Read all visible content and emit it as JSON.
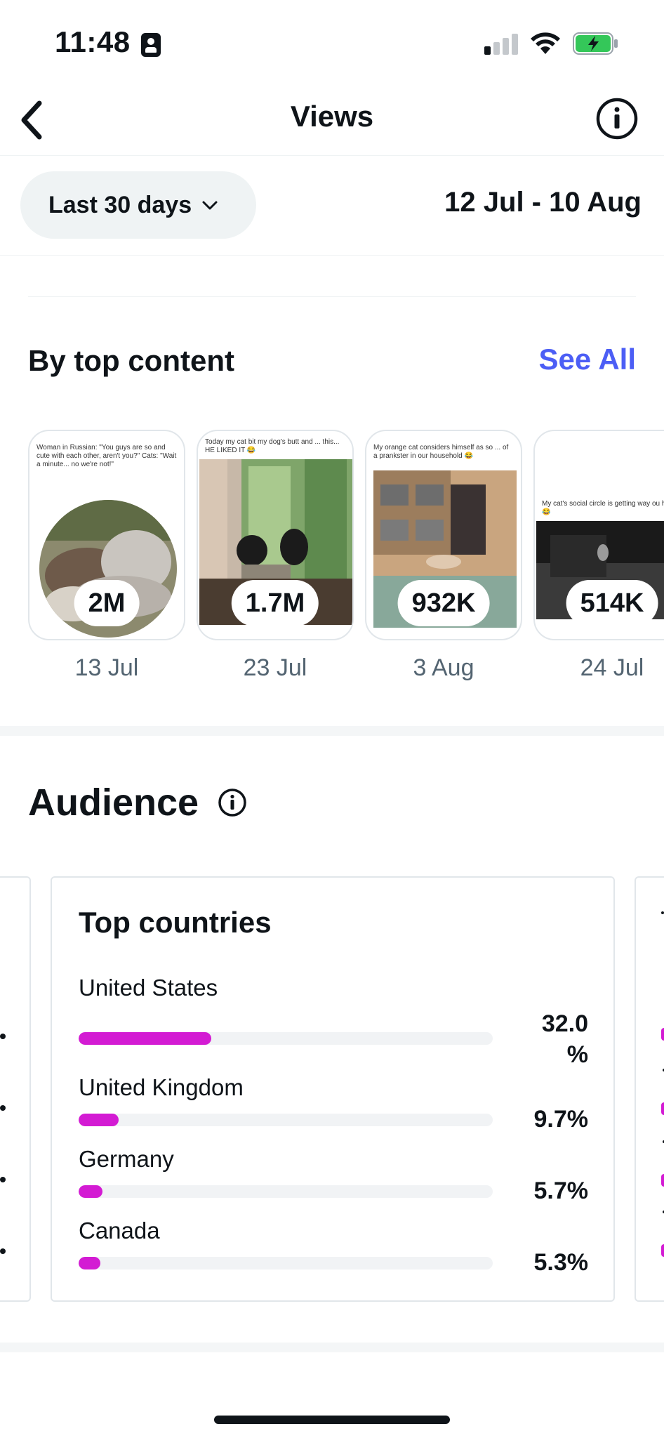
{
  "status_bar": {
    "time": "11:48",
    "signal_bars_active": 1,
    "battery_color": "#34c759"
  },
  "header": {
    "title": "Views",
    "back_icon": "chevron-left-icon",
    "info_icon": "info-icon"
  },
  "filters": {
    "range_label": "Last 30 days",
    "date_range": "12 Jul - 10 Aug"
  },
  "top_content": {
    "title": "By top content",
    "see_all": "See All",
    "accent_color": "#4c5ef5",
    "items": [
      {
        "views": "2M",
        "date": "13 Jul",
        "caption": "Woman in Russian: \"You guys are so and cute with each other, aren't you?\"  Cats: \"Wait a minute... no we're not!\""
      },
      {
        "views": "1.7M",
        "date": "23 Jul",
        "caption": "Today my cat bit my dog's butt and ... this... HE LIKED IT 😂"
      },
      {
        "views": "932K",
        "date": "3 Aug",
        "caption": "My orange cat considers himself as so ... of a prankster in our household 😂"
      },
      {
        "views": "514K",
        "date": "24 Jul",
        "caption": "My cat's social circle is getting way ou hand 😂"
      }
    ]
  },
  "audience": {
    "title": "Audience",
    "top_countries": {
      "title": "Top countries",
      "bar_color": "#d31bd3",
      "items": [
        {
          "name": "United States",
          "pct_label": "32.0 %",
          "fraction": 0.32
        },
        {
          "name": "United Kingdom",
          "pct_label": "9.7%",
          "fraction": 0.097
        },
        {
          "name": "Germany",
          "pct_label": "5.7%",
          "fraction": 0.057
        },
        {
          "name": "Canada",
          "pct_label": "5.3%",
          "fraction": 0.053
        }
      ]
    }
  }
}
